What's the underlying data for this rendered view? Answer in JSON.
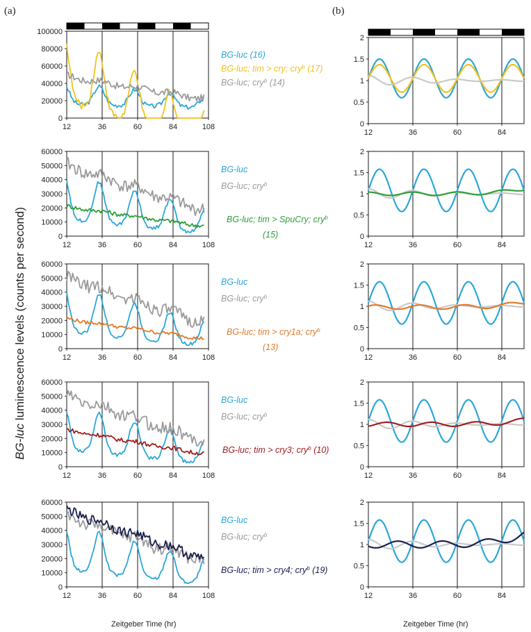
{
  "panel_labels": [
    "(a)",
    "(b)"
  ],
  "y_label_main": "BG-luc",
  "y_label_rest": " luminescence levels (counts per second)",
  "x_label": "Zeitgeber Time (hr)",
  "colors": {
    "blue": "#2aa6d8",
    "gray": "#9a9a9a",
    "lightgray": "#c8c8c8",
    "yellow": "#f2c01e",
    "green": "#2f9e3a",
    "orange": "#e07a2a",
    "red": "#a01e1e",
    "navy": "#1a1f4e"
  },
  "chart_data": [
    {
      "type": "line",
      "panel": "a",
      "row": 1,
      "xticks": [
        12,
        36,
        60,
        84,
        108
      ],
      "xlim": [
        12,
        108
      ],
      "yticks": [
        0,
        20000,
        40000,
        60000,
        80000,
        100000
      ],
      "ylim": [
        0,
        100000
      ],
      "light_dark_bar": true,
      "legend": [
        {
          "text": "BG-luc (16)",
          "color": "#2aa6d8"
        },
        {
          "text": "BG-luc; tim > cry; cry",
          "sup": "b",
          "suffix": " (17)",
          "color": "#f2c01e"
        },
        {
          "text": "BG-luc; cry",
          "sup": "b",
          "suffix": " (14)",
          "color": "#9a9a9a"
        }
      ],
      "series": [
        {
          "name": "BG-luc (16)",
          "color": "#2aa6d8",
          "baseline": 16000,
          "amp": 24000,
          "trend": -4000,
          "noise": 2500,
          "phase": 0
        },
        {
          "name": "BG-luc; tim > cry; cry b (17)",
          "color": "#f2c01e",
          "baseline": 20000,
          "amp": 76000,
          "trend": -52000,
          "noise": 4000,
          "phase": 0
        },
        {
          "name": "BG-luc; cry b (14)",
          "color": "#9a9a9a",
          "baseline": 48000,
          "amp": 6000,
          "trend": -26000,
          "noise": 4000,
          "phase": 0,
          "flat": true
        }
      ]
    },
    {
      "type": "line",
      "panel": "a",
      "row": 2,
      "xticks": [
        12,
        36,
        60,
        84,
        108
      ],
      "xlim": [
        12,
        108
      ],
      "yticks": [
        0,
        10000,
        20000,
        30000,
        40000,
        50000,
        60000
      ],
      "ylim": [
        0,
        60000
      ],
      "legend": [
        {
          "text": "BG-luc",
          "color": "#2aa6d8"
        },
        {
          "text": "BG-luc; cry",
          "sup": "b",
          "suffix": "",
          "color": "#9a9a9a"
        },
        {
          "text": "BG-luc; tim > SpuCry; cry",
          "sup": "b",
          "suffix": "",
          "color": "#2f9e3a"
        },
        {
          "text": "(15)",
          "color": "#2f9e3a"
        }
      ],
      "series": [
        {
          "name": "BG-luc",
          "color": "#2aa6d8",
          "baseline": 12000,
          "amp": 32000,
          "trend": -10000,
          "noise": 1200,
          "phase": 0
        },
        {
          "name": "BG-luc; cry b",
          "color": "#9a9a9a",
          "baseline": 50000,
          "amp": 5000,
          "trend": -32000,
          "noise": 4500,
          "phase": 0,
          "flat": true
        },
        {
          "name": "BG-luc; tim > SpuCry; cry b (15)",
          "color": "#2f9e3a",
          "baseline": 21000,
          "amp": 1500,
          "trend": -14000,
          "noise": 1500,
          "phase": 0,
          "flat": true
        }
      ]
    },
    {
      "type": "line",
      "panel": "a",
      "row": 3,
      "xticks": [
        12,
        36,
        60,
        84,
        108
      ],
      "xlim": [
        12,
        108
      ],
      "yticks": [
        0,
        10000,
        20000,
        30000,
        40000,
        50000,
        60000
      ],
      "ylim": [
        0,
        60000
      ],
      "legend": [
        {
          "text": "BG-luc",
          "color": "#2aa6d8"
        },
        {
          "text": "BG-luc; cry",
          "sup": "b",
          "suffix": "",
          "color": "#9a9a9a"
        },
        {
          "text": "BG-luc; tim > cry1a; cry",
          "sup": "b",
          "suffix": "",
          "color": "#e07a2a"
        },
        {
          "text": "(13)",
          "color": "#e07a2a"
        }
      ],
      "series": [
        {
          "name": "BG-luc",
          "color": "#2aa6d8",
          "baseline": 12000,
          "amp": 32000,
          "trend": -10000,
          "noise": 1200,
          "phase": 0
        },
        {
          "name": "BG-luc; cry b",
          "color": "#9a9a9a",
          "baseline": 50000,
          "amp": 5000,
          "trend": -32000,
          "noise": 4500,
          "phase": 0,
          "flat": true
        },
        {
          "name": "BG-luc; tim > cry1a; cry b (13)",
          "color": "#e07a2a",
          "baseline": 21000,
          "amp": 1500,
          "trend": -14000,
          "noise": 1200,
          "phase": 0,
          "flat": true
        }
      ]
    },
    {
      "type": "line",
      "panel": "a",
      "row": 4,
      "xticks": [
        12,
        36,
        60,
        84,
        108
      ],
      "xlim": [
        12,
        108
      ],
      "yticks": [
        0,
        10000,
        20000,
        30000,
        40000,
        50000,
        60000
      ],
      "ylim": [
        0,
        60000
      ],
      "legend": [
        {
          "text": "BG-luc",
          "color": "#2aa6d8"
        },
        {
          "text": "BG-luc; cry",
          "sup": "b",
          "suffix": "",
          "color": "#9a9a9a"
        },
        {
          "text": "BG-luc; tim > cry3; cry",
          "sup": "b",
          "suffix": " (10)",
          "color": "#a01e1e"
        }
      ],
      "series": [
        {
          "name": "BG-luc",
          "color": "#2aa6d8",
          "baseline": 12000,
          "amp": 32000,
          "trend": -10000,
          "noise": 1200,
          "phase": 0
        },
        {
          "name": "BG-luc; cry b",
          "color": "#9a9a9a",
          "baseline": 50000,
          "amp": 5000,
          "trend": -32000,
          "noise": 4500,
          "phase": 0,
          "flat": true
        },
        {
          "name": "BG-luc; tim > cry3; cry b (10)",
          "color": "#a01e1e",
          "baseline": 26000,
          "amp": 1500,
          "trend": -17000,
          "noise": 1500,
          "phase": 0,
          "flat": true
        }
      ]
    },
    {
      "type": "line",
      "panel": "a",
      "row": 5,
      "xticks": [
        12,
        36,
        60,
        84,
        108
      ],
      "xlim": [
        12,
        108
      ],
      "yticks": [
        0,
        10000,
        20000,
        30000,
        40000,
        50000,
        60000
      ],
      "ylim": [
        0,
        60000
      ],
      "legend": [
        {
          "text": "BG-luc",
          "color": "#2aa6d8"
        },
        {
          "text": "BG-luc; cry",
          "sup": "b",
          "suffix": "",
          "color": "#9a9a9a"
        },
        {
          "text": "BG-luc; tim > cry4; cry",
          "sup": "b",
          "suffix": " (19)",
          "color": "#1a1f4e"
        }
      ],
      "series": [
        {
          "name": "BG-luc",
          "color": "#2aa6d8",
          "baseline": 12000,
          "amp": 32000,
          "trend": -10000,
          "noise": 1200,
          "phase": 0
        },
        {
          "name": "BG-luc; cry b",
          "color": "#9a9a9a",
          "baseline": 50000,
          "amp": 5000,
          "trend": -32000,
          "noise": 4500,
          "phase": 0,
          "flat": true
        },
        {
          "name": "BG-luc; tim > cry4; cry b (19)",
          "color": "#1a1f4e",
          "baseline": 54000,
          "amp": 4000,
          "trend": -34000,
          "noise": 3500,
          "phase": 0,
          "flat": true
        }
      ]
    },
    {
      "type": "line",
      "panel": "b",
      "row": 1,
      "xticks": [
        12,
        36,
        60,
        84
      ],
      "xlim": [
        12,
        96
      ],
      "yticks": [
        0,
        0.5,
        1,
        1.5,
        2
      ],
      "ylim": [
        0,
        2
      ],
      "light_dark_bar": true,
      "series": [
        {
          "name": "BG-luc",
          "color": "#2aa6d8",
          "mean": 1.05,
          "amp": 0.45,
          "phase": 6
        },
        {
          "name": "BG-luc; tim > cry; cry b",
          "color": "#f2c01e",
          "mean": 1.05,
          "amp": 0.32,
          "phase": 6
        },
        {
          "name": "BG-luc; cry b",
          "color": "#c8c8c8",
          "mean": 1.0,
          "amp": 0.12,
          "phase": 0,
          "damp": true
        }
      ]
    },
    {
      "type": "line",
      "panel": "b",
      "row": 2,
      "xticks": [
        12,
        36,
        60,
        84
      ],
      "xlim": [
        12,
        96
      ],
      "yticks": [
        0,
        0.5,
        1,
        1.5,
        2
      ],
      "ylim": [
        0,
        2
      ],
      "series": [
        {
          "name": "BG-luc",
          "color": "#2aa6d8",
          "mean": 1.08,
          "amp": 0.5,
          "phase": 6
        },
        {
          "name": "BG-luc; cry b",
          "color": "#c8c8c8",
          "mean": 1.0,
          "amp": 0.12,
          "phase": 0,
          "damp": true
        },
        {
          "name": "BG-luc; tim > SpuCry; cry b",
          "color": "#2f9e3a",
          "mean": 1.0,
          "amp": 0.04,
          "phase": 0,
          "tail": 0.12
        }
      ]
    },
    {
      "type": "line",
      "panel": "b",
      "row": 3,
      "xticks": [
        12,
        36,
        60,
        84
      ],
      "xlim": [
        12,
        96
      ],
      "yticks": [
        0,
        0.5,
        1,
        1.5,
        2
      ],
      "ylim": [
        0,
        2
      ],
      "series": [
        {
          "name": "BG-luc",
          "color": "#2aa6d8",
          "mean": 1.08,
          "amp": 0.5,
          "phase": 6
        },
        {
          "name": "BG-luc; cry b",
          "color": "#c8c8c8",
          "mean": 1.0,
          "amp": 0.12,
          "phase": 0,
          "damp": true
        },
        {
          "name": "BG-luc; tim > cry1a; cry b",
          "color": "#e07a2a",
          "mean": 0.98,
          "amp": 0.05,
          "phase": 4,
          "tail": 0.1
        }
      ]
    },
    {
      "type": "line",
      "panel": "b",
      "row": 4,
      "xticks": [
        12,
        36,
        60,
        84
      ],
      "xlim": [
        12,
        96
      ],
      "yticks": [
        0,
        0.5,
        1,
        1.5,
        2
      ],
      "ylim": [
        0,
        2
      ],
      "series": [
        {
          "name": "BG-luc",
          "color": "#2aa6d8",
          "mean": 1.08,
          "amp": 0.5,
          "phase": 6
        },
        {
          "name": "BG-luc; cry b",
          "color": "#c8c8c8",
          "mean": 1.0,
          "amp": 0.12,
          "phase": 0,
          "damp": true
        },
        {
          "name": "BG-luc; tim > cry3; cry b",
          "color": "#a01e1e",
          "mean": 1.0,
          "amp": 0.05,
          "phase": 10,
          "tail": 0.1
        }
      ]
    },
    {
      "type": "line",
      "panel": "b",
      "row": 5,
      "xticks": [
        12,
        36,
        60,
        84
      ],
      "xlim": [
        12,
        96
      ],
      "yticks": [
        0,
        0.5,
        1,
        1.5,
        2
      ],
      "ylim": [
        0,
        2
      ],
      "series": [
        {
          "name": "BG-luc",
          "color": "#2aa6d8",
          "mean": 1.08,
          "amp": 0.5,
          "phase": 6
        },
        {
          "name": "BG-luc; cry b",
          "color": "#c8c8c8",
          "mean": 1.0,
          "amp": 0.12,
          "phase": 0,
          "damp": true
        },
        {
          "name": "BG-luc; tim > cry4; cry b",
          "color": "#1a1f4e",
          "mean": 1.0,
          "amp": 0.08,
          "phase": 16,
          "tail": 0.25
        }
      ]
    }
  ]
}
